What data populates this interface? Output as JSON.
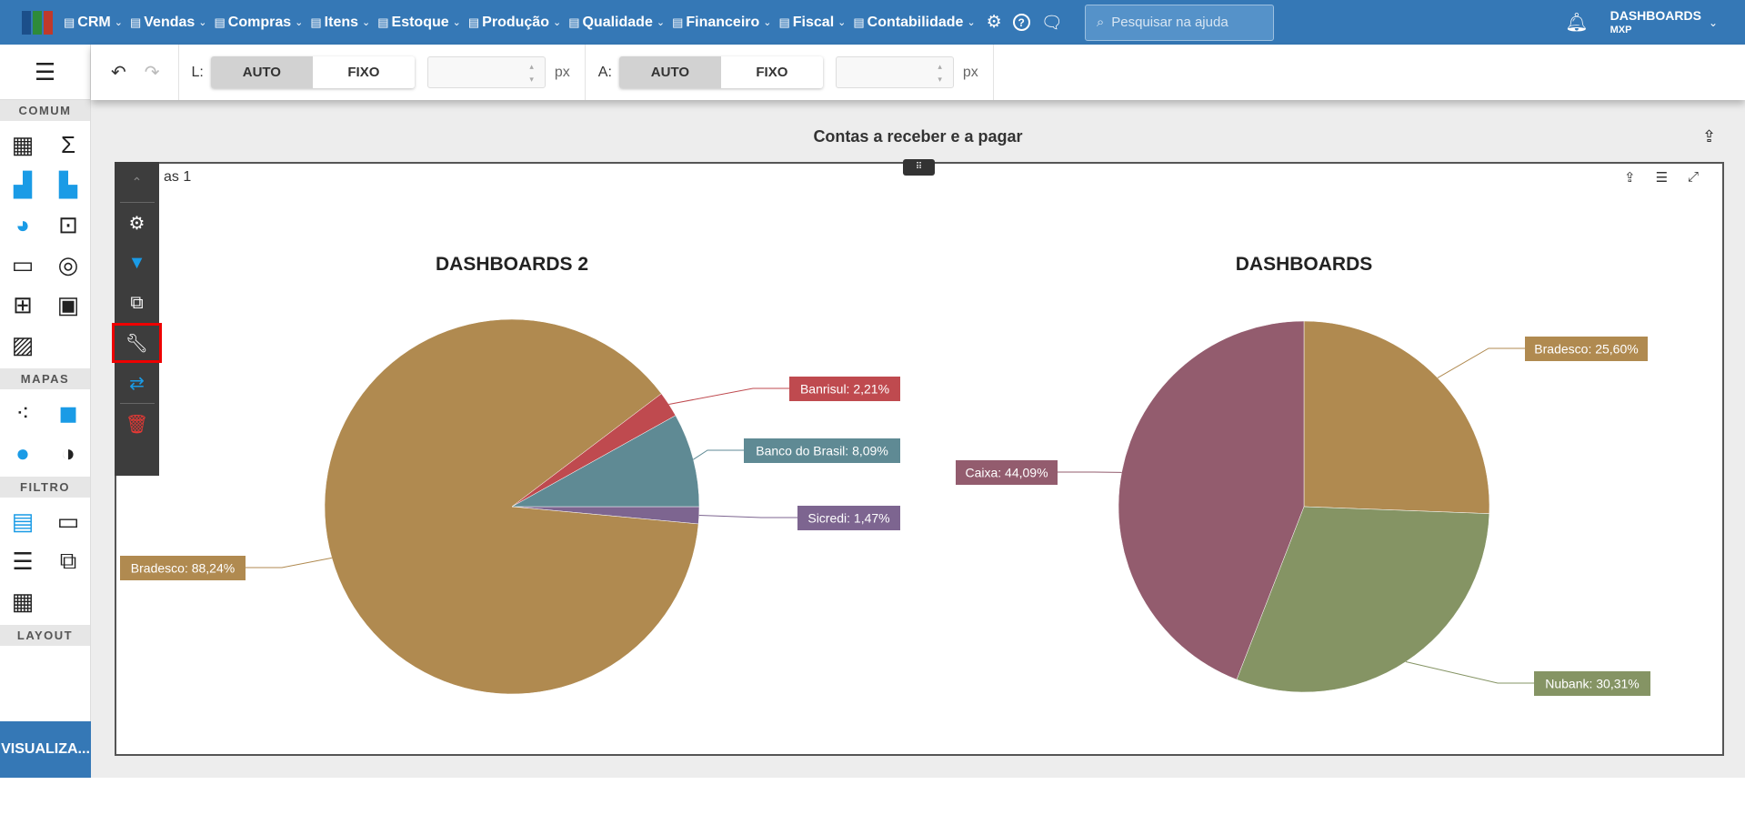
{
  "header": {
    "nav": [
      {
        "label": "CRM",
        "icon": "crm-icon"
      },
      {
        "label": "Vendas",
        "icon": "dollar-icon"
      },
      {
        "label": "Compras",
        "icon": "cart-icon"
      },
      {
        "label": "Itens",
        "icon": "items-icon"
      },
      {
        "label": "Estoque",
        "icon": "stock-icon"
      },
      {
        "label": "Produção",
        "icon": "factory-icon"
      },
      {
        "label": "Qualidade",
        "icon": "quality-icon"
      },
      {
        "label": "Financeiro",
        "icon": "money-bag-icon"
      },
      {
        "label": "Fiscal",
        "icon": "document-icon"
      },
      {
        "label": "Contabilidade",
        "icon": "ledger-icon"
      }
    ],
    "search_placeholder": "Pesquisar na ajuda",
    "user": "DASHBOARDS",
    "company": "MXP"
  },
  "sidebar": {
    "sections": [
      "COMUM",
      "MAPAS",
      "FILTRO",
      "LAYOUT"
    ],
    "view_button": "VISUALIZA..."
  },
  "toolbar": {
    "width_label": "L:",
    "height_label": "A:",
    "auto": "AUTO",
    "fixed": "FIXO",
    "unit": "px",
    "width_mode": "AUTO",
    "height_mode": "AUTO"
  },
  "dashboard": {
    "title": "Contas a receber e a pagar",
    "panel_label": "as 1"
  },
  "colors": {
    "header": "#3578b6",
    "Bradesco": "#b08a50",
    "Banrisul": "#bf4a4f",
    "Banco do Brasil": "#5f8a94",
    "Sicredi": "#7d6590",
    "Nubank": "#859464",
    "Caixa": "#935c6e"
  },
  "chart_data": [
    {
      "type": "pie",
      "title": "DASHBOARDS 2",
      "slices": [
        {
          "label": "Sicredi",
          "value": 1.47,
          "text": "Sicredi: 1,47%"
        },
        {
          "label": "Bradesco",
          "value": 88.24,
          "text": "Bradesco: 88,24%"
        },
        {
          "label": "Banrisul",
          "value": 2.21,
          "text": "Banrisul: 2,21%"
        },
        {
          "label": "Banco do Brasil",
          "value": 8.09,
          "text": "Banco do Brasil: 8,09%"
        }
      ]
    },
    {
      "type": "pie",
      "title": "DASHBOARDS",
      "slices": [
        {
          "label": "Bradesco",
          "value": 25.6,
          "text": "Bradesco: 25,60%"
        },
        {
          "label": "Nubank",
          "value": 30.31,
          "text": "Nubank: 30,31%"
        },
        {
          "label": "Caixa",
          "value": 44.09,
          "text": "Caixa: 44,09%"
        }
      ]
    }
  ]
}
